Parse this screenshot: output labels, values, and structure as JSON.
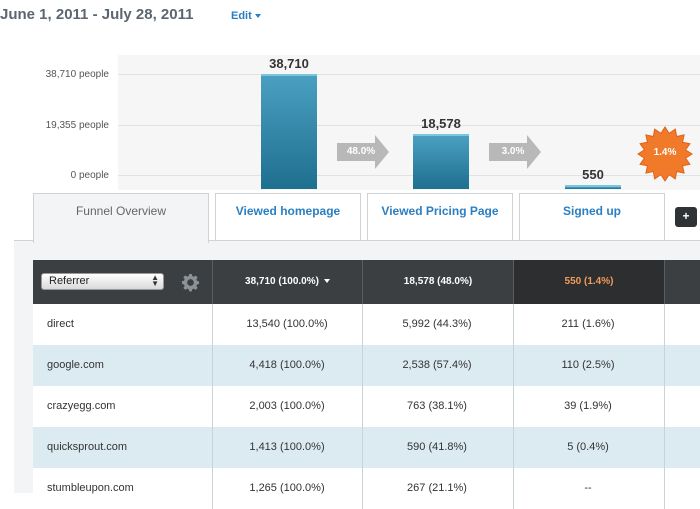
{
  "header": {
    "date_range": "June 1, 2011 - July 28, 2011",
    "edit_label": "Edit"
  },
  "chart_data": {
    "type": "bar",
    "categories": [
      "Viewed homepage",
      "Viewed Pricing Page",
      "Signed up"
    ],
    "values": [
      38710,
      18578,
      550
    ],
    "data_labels": [
      "38,710",
      "18,578",
      "550"
    ],
    "y_ticks": [
      "38,710 people",
      "19,355 people",
      "0 people"
    ],
    "y_tick_values": [
      38710,
      19355,
      0
    ],
    "ylim": [
      0,
      38710
    ],
    "conversion_arrows": [
      "48.0%",
      "3.0%"
    ],
    "overall_conversion": "1.4%",
    "colors": {
      "bar": "#2f87aa",
      "arrow": "#b8b8b8",
      "badge": "#f07a2a"
    }
  },
  "tabs": [
    {
      "label": "Funnel Overview"
    },
    {
      "label": "Viewed homepage"
    },
    {
      "label": "Viewed Pricing Page"
    },
    {
      "label": "Signed up"
    }
  ],
  "plus_label": "+",
  "table": {
    "referrer_select": "Referrer",
    "headers": [
      "38,710 (100.0%)",
      "18,578 (48.0%)",
      "550 (1.4%)"
    ],
    "rows": [
      {
        "ref": "direct",
        "c1": "13,540 (100.0%)",
        "c2": "5,992 (44.3%)",
        "c3": "211 (1.6%)"
      },
      {
        "ref": "google.com",
        "c1": "4,418 (100.0%)",
        "c2": "2,538 (57.4%)",
        "c3": "110 (2.5%)"
      },
      {
        "ref": "crazyegg.com",
        "c1": "2,003 (100.0%)",
        "c2": "763 (38.1%)",
        "c3": "39 (1.9%)"
      },
      {
        "ref": "quicksprout.com",
        "c1": "1,413 (100.0%)",
        "c2": "590 (41.8%)",
        "c3": "5 (0.4%)"
      },
      {
        "ref": "stumbleupon.com",
        "c1": "1,265 (100.0%)",
        "c2": "267 (21.1%)",
        "c3": "--"
      }
    ]
  },
  "icons": {
    "settings": "gear-icon",
    "edit_caret": "caret-down-icon"
  }
}
